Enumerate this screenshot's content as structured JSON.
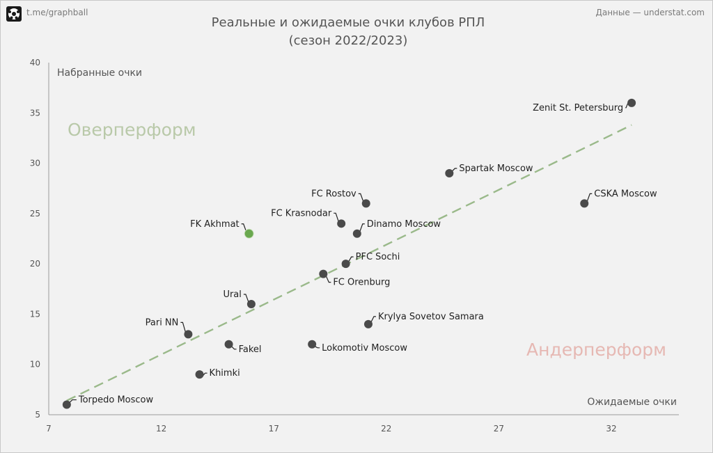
{
  "header": {
    "source_left": "t.me/graphball",
    "source_right": "Данные — understat.com",
    "title_line1": "Реальные и ожидаемые очки клубов РПЛ",
    "title_line2": "(сезон 2022/2023)"
  },
  "logo_icon": "soccer-ball-icon",
  "chart_data": {
    "type": "scatter",
    "xlabel": "Ожидаемые очки",
    "ylabel": "Набранные очки",
    "xlim": [
      7,
      35
    ],
    "ylim": [
      5,
      40
    ],
    "xticks": [
      7,
      12,
      17,
      22,
      27,
      32
    ],
    "yticks": [
      5,
      10,
      15,
      20,
      25,
      30,
      35,
      40
    ],
    "grid": false,
    "annotations": {
      "over": "Оверперформ",
      "under": "Андерперформ"
    },
    "colors": {
      "point": "#4a4a4a",
      "highlight": "#6aa84f",
      "trend": "#9ab98a",
      "over_text": "#b9c9a9",
      "under_text": "#e6b8b3",
      "axis": "#999999",
      "text": "#222222"
    },
    "trendline": {
      "x": [
        7.8,
        32.9
      ],
      "y": [
        6.4,
        33.8
      ]
    },
    "points": [
      {
        "label": "Zenit St. Petersburg",
        "x": 32.9,
        "y": 36
      },
      {
        "label": "Spartak Moscow",
        "x": 24.8,
        "y": 29
      },
      {
        "label": "CSKA Moscow",
        "x": 30.8,
        "y": 26
      },
      {
        "label": "FC Rostov",
        "x": 21.1,
        "y": 26
      },
      {
        "label": "FC Krasnodar",
        "x": 20.0,
        "y": 24
      },
      {
        "label": "Dinamo Moscow",
        "x": 20.7,
        "y": 23
      },
      {
        "label": "FK Akhmat",
        "x": 15.9,
        "y": 23,
        "highlight": true
      },
      {
        "label": "PFC Sochi",
        "x": 20.2,
        "y": 20
      },
      {
        "label": "FC Orenburg",
        "x": 19.2,
        "y": 19
      },
      {
        "label": "Ural",
        "x": 16.0,
        "y": 16
      },
      {
        "label": "Krylya Sovetov Samara",
        "x": 21.2,
        "y": 14
      },
      {
        "label": "Pari NN",
        "x": 13.2,
        "y": 13
      },
      {
        "label": "Fakel",
        "x": 15.0,
        "y": 12
      },
      {
        "label": "Lokomotiv Moscow",
        "x": 18.7,
        "y": 12
      },
      {
        "label": "Khimki",
        "x": 13.7,
        "y": 9
      },
      {
        "label": "Torpedo Moscow",
        "x": 7.8,
        "y": 6
      }
    ]
  }
}
